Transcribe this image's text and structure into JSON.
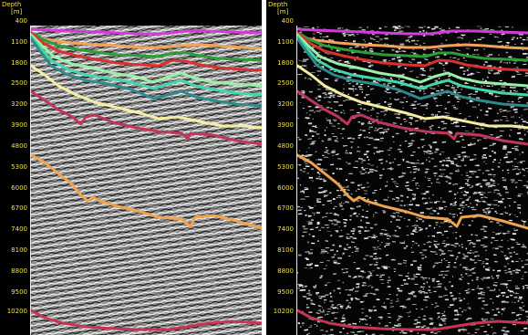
{
  "axis": {
    "title": "Depth",
    "unit": "[m]",
    "ticks": [
      "400",
      "1100",
      "1800",
      "2500",
      "3200",
      "3900",
      "4800",
      "5300",
      "6000",
      "6700",
      "7400",
      "8100",
      "8800",
      "9500",
      "10200"
    ]
  },
  "panels": [
    {
      "id": "left",
      "display": "grayscale wiggle seismic section"
    },
    {
      "id": "right",
      "display": "black background, white speckled attribute section"
    }
  ],
  "horizons": [
    {
      "color": "#d43cd8"
    },
    {
      "color": "#f2a35a"
    },
    {
      "color": "#2d9c3a"
    },
    {
      "color": "#d8322e"
    },
    {
      "color": "#9af0a8"
    },
    {
      "color": "#42d6a8"
    },
    {
      "color": "#2f8a8c"
    },
    {
      "color": "#f4eea0"
    },
    {
      "color": "#c0365a"
    },
    {
      "color": "#f0a44e"
    },
    {
      "color": "#c83458"
    }
  ]
}
